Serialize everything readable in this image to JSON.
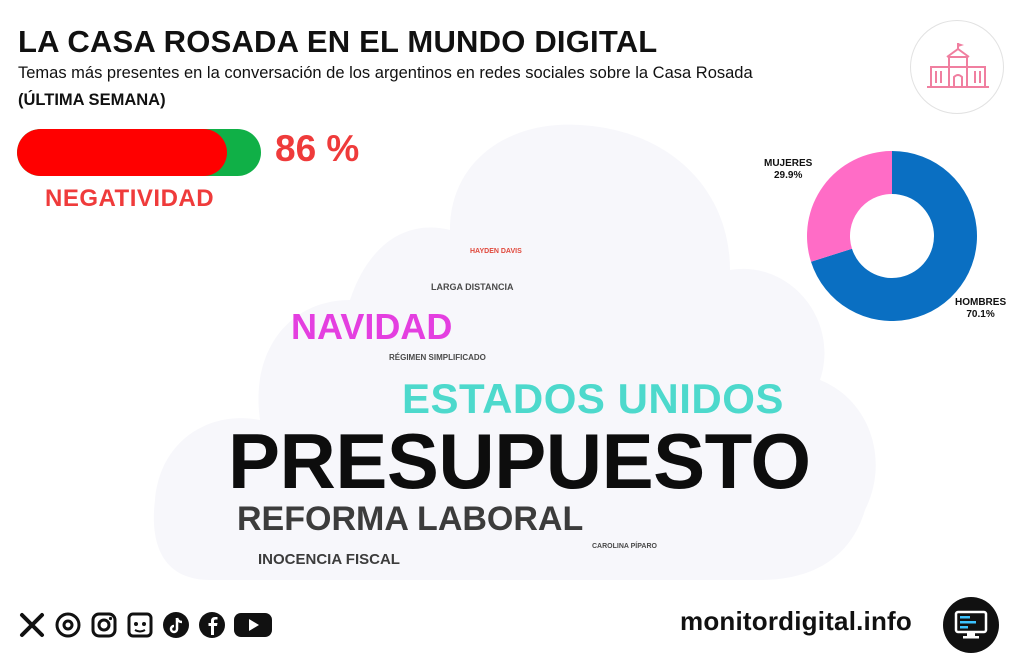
{
  "header": {
    "title": "LA CASA ROSADA EN EL MUNDO DIGITAL",
    "subtitle": "Temas más presentes en la conversación de los argentinos en redes sociales sobre la Casa Rosada",
    "period": "(ÚLTIMA SEMANA)"
  },
  "negativity": {
    "value": 86,
    "value_text": "86 %",
    "label": "NEGATIVIDAD",
    "colors": {
      "negative": "#ff0000",
      "positive": "#10b047",
      "text": "#ef3b3b"
    }
  },
  "logo": {
    "icon": "casa-rosada-icon",
    "color": "#f07fa0"
  },
  "word_cloud": {
    "words": [
      {
        "text": "HAYDEN DAVIS",
        "color": "#e0483b"
      },
      {
        "text": "LARGA DISTANCIA",
        "color": "#4a4a4a"
      },
      {
        "text": "NAVIDAD",
        "color": "#e43fe0"
      },
      {
        "text": "RÉGIMEN SIMPLIFICADO",
        "color": "#4a4a4a"
      },
      {
        "text": "ESTADOS UNIDOS",
        "color": "#4dd9cc"
      },
      {
        "text": "PRESUPUESTO",
        "color": "#0d0d0d"
      },
      {
        "text": "REFORMA LABORAL",
        "color": "#3c3c3c"
      },
      {
        "text": "CAROLINA PÍPARO",
        "color": "#4a4a4a"
      },
      {
        "text": "INOCENCIA FISCAL",
        "color": "#3c3c3c"
      }
    ]
  },
  "chart_data": {
    "type": "pie",
    "donut": true,
    "categories": [
      "HOMBRES",
      "MUJERES"
    ],
    "values": [
      70.1,
      29.9
    ],
    "value_labels": [
      "70.1%",
      "29.9%"
    ],
    "colors": [
      "#0a6fc2",
      "#ff6cc6"
    ]
  },
  "footer": {
    "social_icons": [
      "x-icon",
      "threads-icon",
      "instagram-icon",
      "kick-icon",
      "tiktok-icon",
      "facebook-icon",
      "youtube-icon"
    ],
    "site": "monitordigital.info",
    "site_icon": "monitor-icon"
  }
}
